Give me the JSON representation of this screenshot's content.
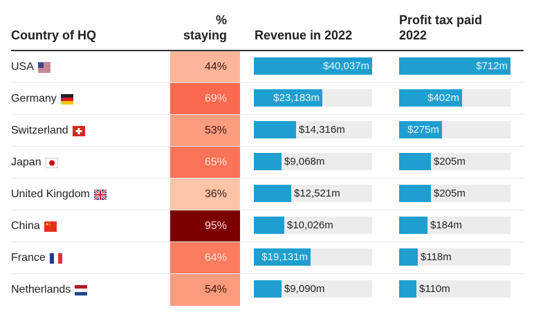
{
  "headers": {
    "country": "Country of HQ",
    "staying_line1": "%",
    "staying_line2": "staying",
    "revenue": "Revenue in 2022",
    "tax_line1": "Profit tax paid",
    "tax_line2": "2022"
  },
  "colors": {
    "bar": "#1f9fcf",
    "track": "#ececec",
    "heat_low": "#fdc5a8",
    "heat_high": "#800000"
  },
  "rows": [
    {
      "country": "USA",
      "flag": "usa-flag-icon",
      "staying": "44%",
      "staying_value": 44,
      "staying_color": "#fdb59a",
      "staying_text_color": "#3a1a10",
      "revenue": "$40,037m",
      "revenue_value": 40037,
      "revenue_fill": 1.0,
      "revenue_inside": true,
      "tax": "$712m",
      "tax_value": 712,
      "tax_fill": 1.0,
      "tax_inside": true
    },
    {
      "country": "Germany",
      "flag": "germany-flag-icon",
      "staying": "69%",
      "staying_value": 69,
      "staying_color": "#fb6a4e",
      "staying_text_color": "#fde0d6",
      "revenue": "$23,183m",
      "revenue_value": 23183,
      "revenue_fill": 0.58,
      "revenue_inside": true,
      "tax": "$402m",
      "tax_value": 402,
      "tax_fill": 0.565,
      "tax_inside": true
    },
    {
      "country": "Switzerland",
      "flag": "switzerland-flag-icon",
      "staying": "53%",
      "staying_value": 53,
      "staying_color": "#fc9d80",
      "staying_text_color": "#3a1a10",
      "revenue": "$14,316m",
      "revenue_value": 14316,
      "revenue_fill": 0.355,
      "revenue_inside": false,
      "tax": "$275m",
      "tax_value": 275,
      "tax_fill": 0.385,
      "tax_inside": true
    },
    {
      "country": "Japan",
      "flag": "japan-flag-icon",
      "staying": "65%",
      "staying_value": 65,
      "staying_color": "#fb7358",
      "staying_text_color": "#fde0d6",
      "revenue": "$9,068m",
      "revenue_value": 9068,
      "revenue_fill": 0.235,
      "revenue_inside": false,
      "tax": "$205m",
      "tax_value": 205,
      "tax_fill": 0.285,
      "tax_inside": false
    },
    {
      "country": "United Kingdom",
      "flag": "uk-flag-icon",
      "staying": "36%",
      "staying_value": 36,
      "staying_color": "#fdc5a8",
      "staying_text_color": "#3a1a10",
      "revenue": "$12,521m",
      "revenue_value": 12521,
      "revenue_fill": 0.315,
      "revenue_inside": false,
      "tax": "$205m",
      "tax_value": 205,
      "tax_fill": 0.285,
      "tax_inside": false
    },
    {
      "country": "China",
      "flag": "china-flag-icon",
      "staying": "95%",
      "staying_value": 95,
      "staying_color": "#7d0000",
      "staying_text_color": "#fde0d6",
      "revenue": "$10,026m",
      "revenue_value": 10026,
      "revenue_fill": 0.255,
      "revenue_inside": false,
      "tax": "$184m",
      "tax_value": 184,
      "tax_fill": 0.255,
      "tax_inside": false
    },
    {
      "country": "France",
      "flag": "france-flag-icon",
      "staying": "64%",
      "staying_value": 64,
      "staying_color": "#fc7c60",
      "staying_text_color": "#fde0d6",
      "revenue": "$19,131m",
      "revenue_value": 19131,
      "revenue_fill": 0.48,
      "revenue_inside": true,
      "tax": "$118m",
      "tax_value": 118,
      "tax_fill": 0.165,
      "tax_inside": false
    },
    {
      "country": "Netherlands",
      "flag": "netherlands-flag-icon",
      "staying": "54%",
      "staying_value": 54,
      "staying_color": "#fc9b7d",
      "staying_text_color": "#3a1a10",
      "revenue": "$9,090m",
      "revenue_value": 9090,
      "revenue_fill": 0.235,
      "revenue_inside": false,
      "tax": "$110m",
      "tax_value": 110,
      "tax_fill": 0.155,
      "tax_inside": false
    }
  ],
  "chart_data": {
    "type": "table",
    "title": "",
    "columns": [
      "Country of HQ",
      "% staying",
      "Revenue in 2022",
      "Profit tax paid 2022"
    ],
    "categories": [
      "USA",
      "Germany",
      "Switzerland",
      "Japan",
      "United Kingdom",
      "China",
      "France",
      "Netherlands"
    ],
    "series": [
      {
        "name": "% staying",
        "unit": "%",
        "values": [
          44,
          69,
          53,
          65,
          36,
          95,
          64,
          54
        ]
      },
      {
        "name": "Revenue in 2022",
        "unit": "$m",
        "values": [
          40037,
          23183,
          14316,
          9068,
          12521,
          10026,
          19131,
          9090
        ]
      },
      {
        "name": "Profit tax paid 2022",
        "unit": "$m",
        "values": [
          712,
          402,
          275,
          205,
          205,
          184,
          118,
          110
        ]
      }
    ]
  }
}
